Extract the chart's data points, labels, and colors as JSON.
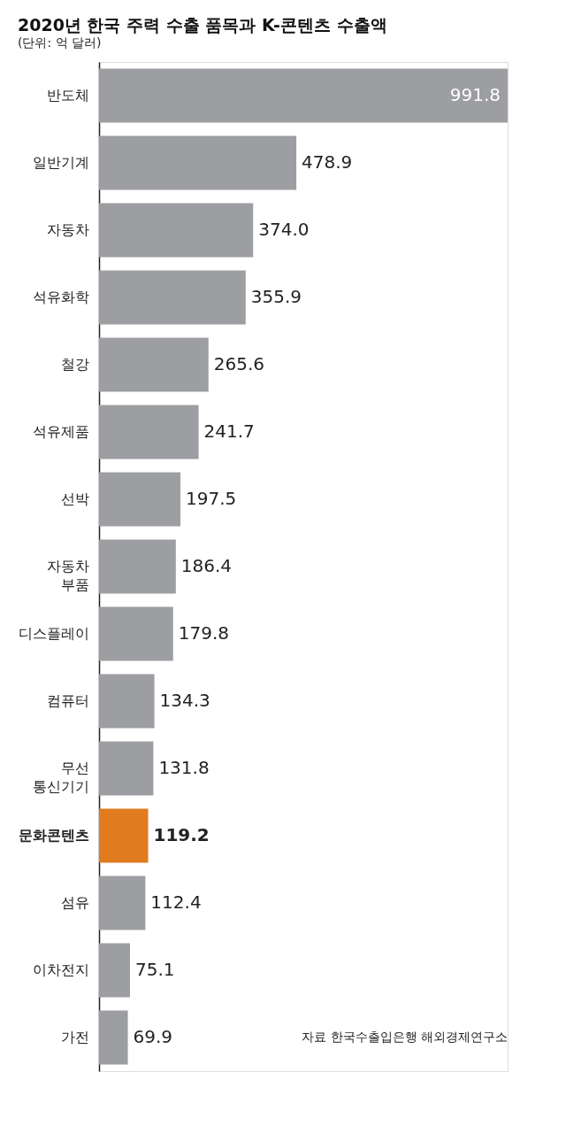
{
  "chart_data": {
    "type": "bar",
    "orientation": "horizontal",
    "title": "2020년 한국 주력 수출 품목과 K-콘텐츠 수출액",
    "subtitle": "(단위: 억 달러)",
    "categories": [
      "반도체",
      "일반기계",
      "자동차",
      "석유화학",
      "철강",
      "석유제품",
      "선박",
      "자동차 부품",
      "디스플레이",
      "컴퓨터",
      "무선 통신기기",
      "문화콘텐츠",
      "섬유",
      "이차전지",
      "가전"
    ],
    "values": [
      991.8,
      478.9,
      374.0,
      355.9,
      265.6,
      241.7,
      197.5,
      186.4,
      179.8,
      134.3,
      131.8,
      119.2,
      112.4,
      75.1,
      69.9
    ],
    "colors": [
      "#9d9ea2",
      "#9d9ea2",
      "#9d9ea2",
      "#9d9ea2",
      "#9d9ea2",
      "#9d9ea2",
      "#9d9ea2",
      "#9d9ea2",
      "#9d9ea2",
      "#9d9ea2",
      "#9d9ea2",
      "#e07b20",
      "#9d9ea2",
      "#9d9ea2",
      "#9d9ea2"
    ],
    "value_labels": [
      "991.8",
      "478.9",
      "374.0",
      "355.9",
      "265.6",
      "241.7",
      "197.5",
      "186.4",
      "179.8",
      "134.3",
      "131.8",
      "119.2",
      "112.4",
      "75.1",
      "69.9"
    ],
    "annotations": [
      "자료 한국수출입은행 해외경제연구소"
    ]
  }
}
